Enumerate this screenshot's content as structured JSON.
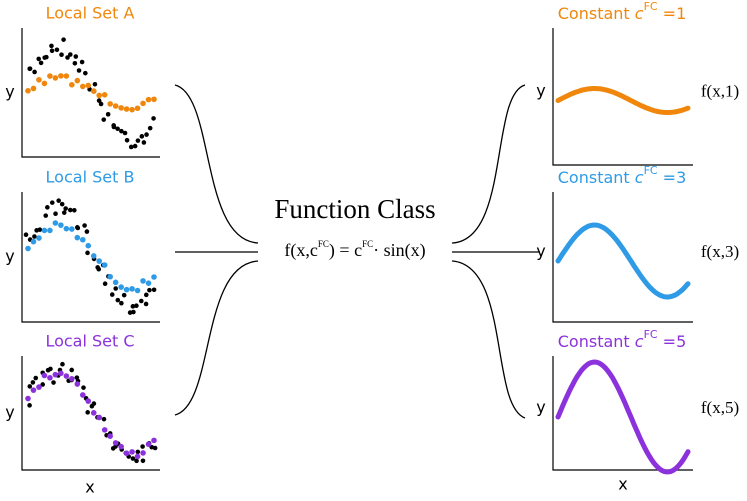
{
  "local_sets": [
    {
      "title": "Local Set A",
      "y_label": "y",
      "color": "#f0870c"
    },
    {
      "title": "Local Set B",
      "y_label": "y",
      "color": "#2f9be6"
    },
    {
      "title": "Local Set C",
      "y_label": "y",
      "color": "#8c32dd"
    }
  ],
  "left_x_label": "x",
  "center": {
    "title": "Function Class",
    "equation": {
      "parts": [
        "f(x,c",
        "FC",
        ") = c",
        "FC",
        "· sin(x)"
      ]
    }
  },
  "constants": [
    {
      "prefix": "Constant ",
      "var": "c",
      "sup": "FC",
      "suffix": " =1",
      "y_label": "y",
      "function_label": "f(x,1)",
      "color": "#f0870c"
    },
    {
      "prefix": "Constant ",
      "var": "c",
      "sup": "FC",
      "suffix": " =3",
      "y_label": "y",
      "function_label": "f(x,3)",
      "color": "#2f9be6"
    },
    {
      "prefix": "Constant ",
      "var": "c",
      "sup": "FC",
      "suffix": " =5",
      "y_label": "y",
      "function_label": "f(x,5)",
      "color": "#8c32dd"
    }
  ],
  "right_x_label": "x"
}
